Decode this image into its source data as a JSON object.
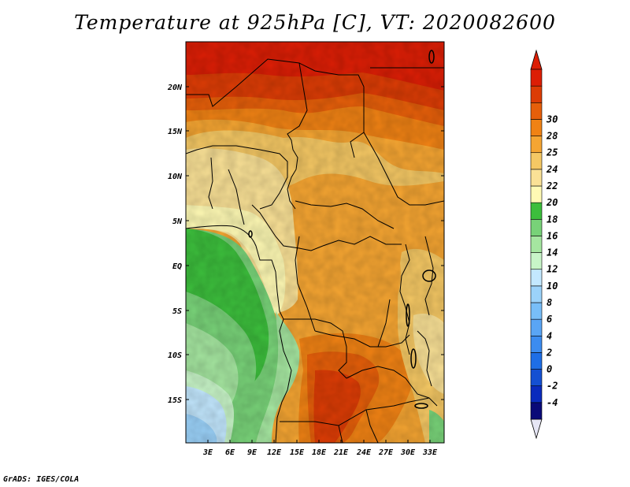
{
  "title": "Temperature at 925hPa [C], VT: 2020082600",
  "credit": "GrADS: IGES/COLA",
  "axes": {
    "lat_labels": [
      "20N",
      "15N",
      "10N",
      "5N",
      "EQ",
      "5S",
      "10S",
      "15S"
    ],
    "lon_labels": [
      "3E",
      "6E",
      "9E",
      "12E",
      "15E",
      "18E",
      "21E",
      "24E",
      "27E",
      "30E",
      "33E"
    ]
  },
  "colorbar": {
    "labels": [
      "-4",
      "-2",
      "0",
      "2",
      "4",
      "6",
      "8",
      "10",
      "12",
      "14",
      "16",
      "18",
      "20",
      "22",
      "24",
      "25",
      "28",
      "30"
    ],
    "colors": [
      "#0a0a78",
      "#0a2bbd",
      "#1450d2",
      "#1e6ee6",
      "#3c8cf0",
      "#5aa5f5",
      "#78bef8",
      "#9bd2fa",
      "#c3e8ff",
      "#c8f5c8",
      "#a5e6a0",
      "#78d278",
      "#3cbe3c",
      "#fffab4",
      "#fae196",
      "#f5c864",
      "#f5a532",
      "#f08214",
      "#e65f0a",
      "#dc3c05",
      "#dc1e05"
    ]
  },
  "legend_colors": {
    "cold_tip": "#e6e6f5",
    "hot_tip": "#dc1e05"
  }
}
